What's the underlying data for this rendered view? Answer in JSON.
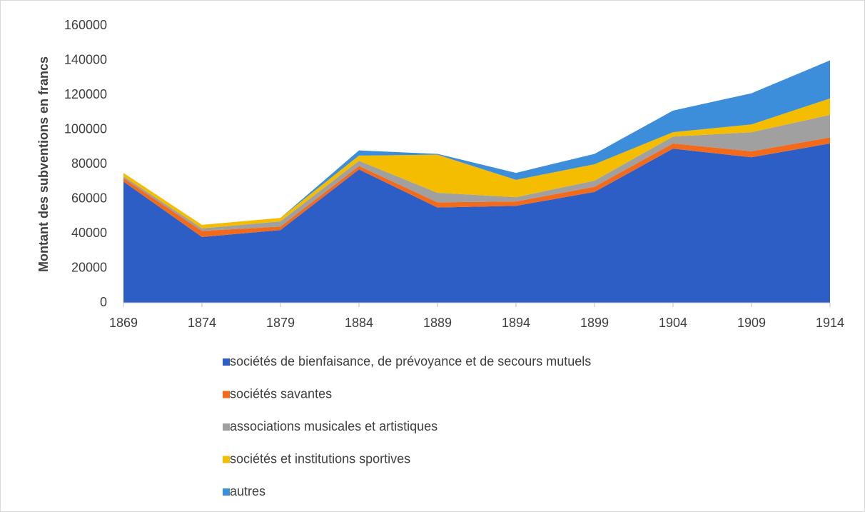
{
  "chart_data": {
    "type": "stacked_area",
    "ylabel": "Montant des subventions en francs",
    "categories": [
      "1869",
      "1874",
      "1879",
      "1884",
      "1889",
      "1894",
      "1899",
      "1904",
      "1909",
      "1914"
    ],
    "series": [
      {
        "name": "sociétés de bienfaisance, de prévoyance et de secours mutuels",
        "color": "#2d5ec6",
        "values": [
          70000,
          38000,
          42000,
          77000,
          55000,
          56000,
          64000,
          89000,
          84000,
          92000
        ]
      },
      {
        "name": "sociétés savantes",
        "color": "#f26a1b",
        "values": [
          2000,
          3500,
          2000,
          2000,
          3000,
          2500,
          3000,
          3000,
          3500,
          3500
        ]
      },
      {
        "name": "associations musicales et artistiques",
        "color": "#a0a0a0",
        "values": [
          1000,
          1500,
          3000,
          3000,
          5500,
          2500,
          3500,
          4000,
          11000,
          13000
        ]
      },
      {
        "name": "sociétés et institutions sportives",
        "color": "#f4bd00",
        "values": [
          2000,
          2000,
          2000,
          3000,
          22000,
          10000,
          9500,
          2500,
          4500,
          9500
        ]
      },
      {
        "name": "autres",
        "color": "#3c8edb",
        "values": [
          0,
          0,
          0,
          3000,
          500,
          4000,
          6000,
          12500,
          18000,
          22000
        ]
      }
    ],
    "ylim": [
      0,
      160000
    ],
    "yticks": [
      0,
      20000,
      40000,
      60000,
      80000,
      100000,
      120000,
      140000,
      160000
    ],
    "grid": false,
    "legend": "bottom"
  }
}
